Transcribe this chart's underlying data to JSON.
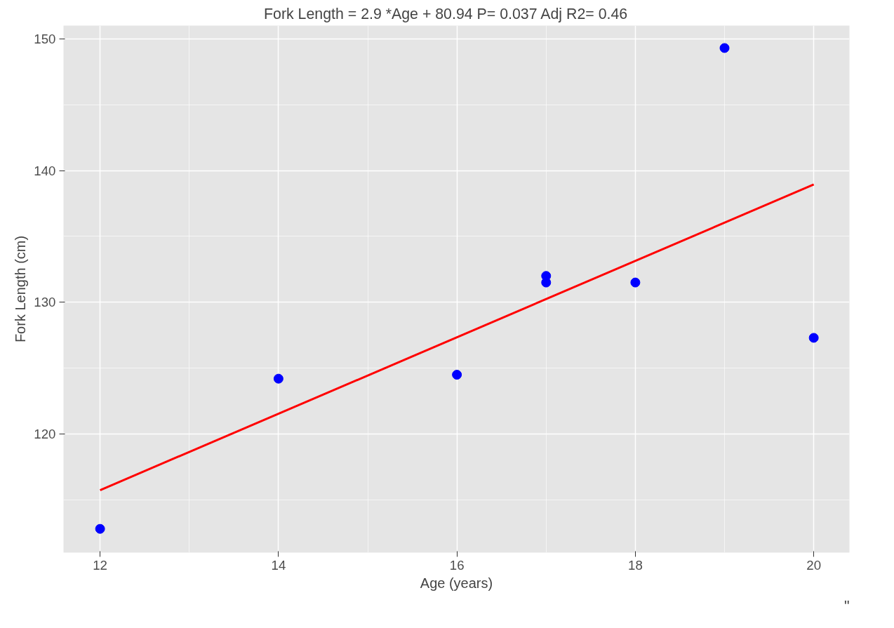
{
  "chart_data": {
    "type": "scatter",
    "title": "Fork Length =  2.9 *Age + 80.94    P= 0.037  Adj R2= 0.46",
    "xlabel": "Age (years)",
    "ylabel": "Fork Length (cm)",
    "x": [
      12,
      14,
      16,
      17,
      17,
      18,
      19,
      20
    ],
    "series": [
      {
        "color": "#0000ff",
        "marker": "circle",
        "values": [
          112.8,
          124.2,
          124.5,
          132.0,
          131.5,
          131.5,
          149.3,
          127.3
        ]
      },
      {
        "type": "line",
        "color": "#ff0000",
        "line_style": "solid",
        "x": [
          12,
          20
        ],
        "values": [
          115.74,
          138.94
        ]
      }
    ],
    "xlim": [
      11.59,
      20.4
    ],
    "ylim": [
      111.0,
      151.0
    ],
    "xticks": [
      12,
      14,
      16,
      18,
      20
    ],
    "yticks": [
      120,
      130,
      140,
      150
    ],
    "grid": true,
    "annotations": [
      "\""
    ]
  }
}
